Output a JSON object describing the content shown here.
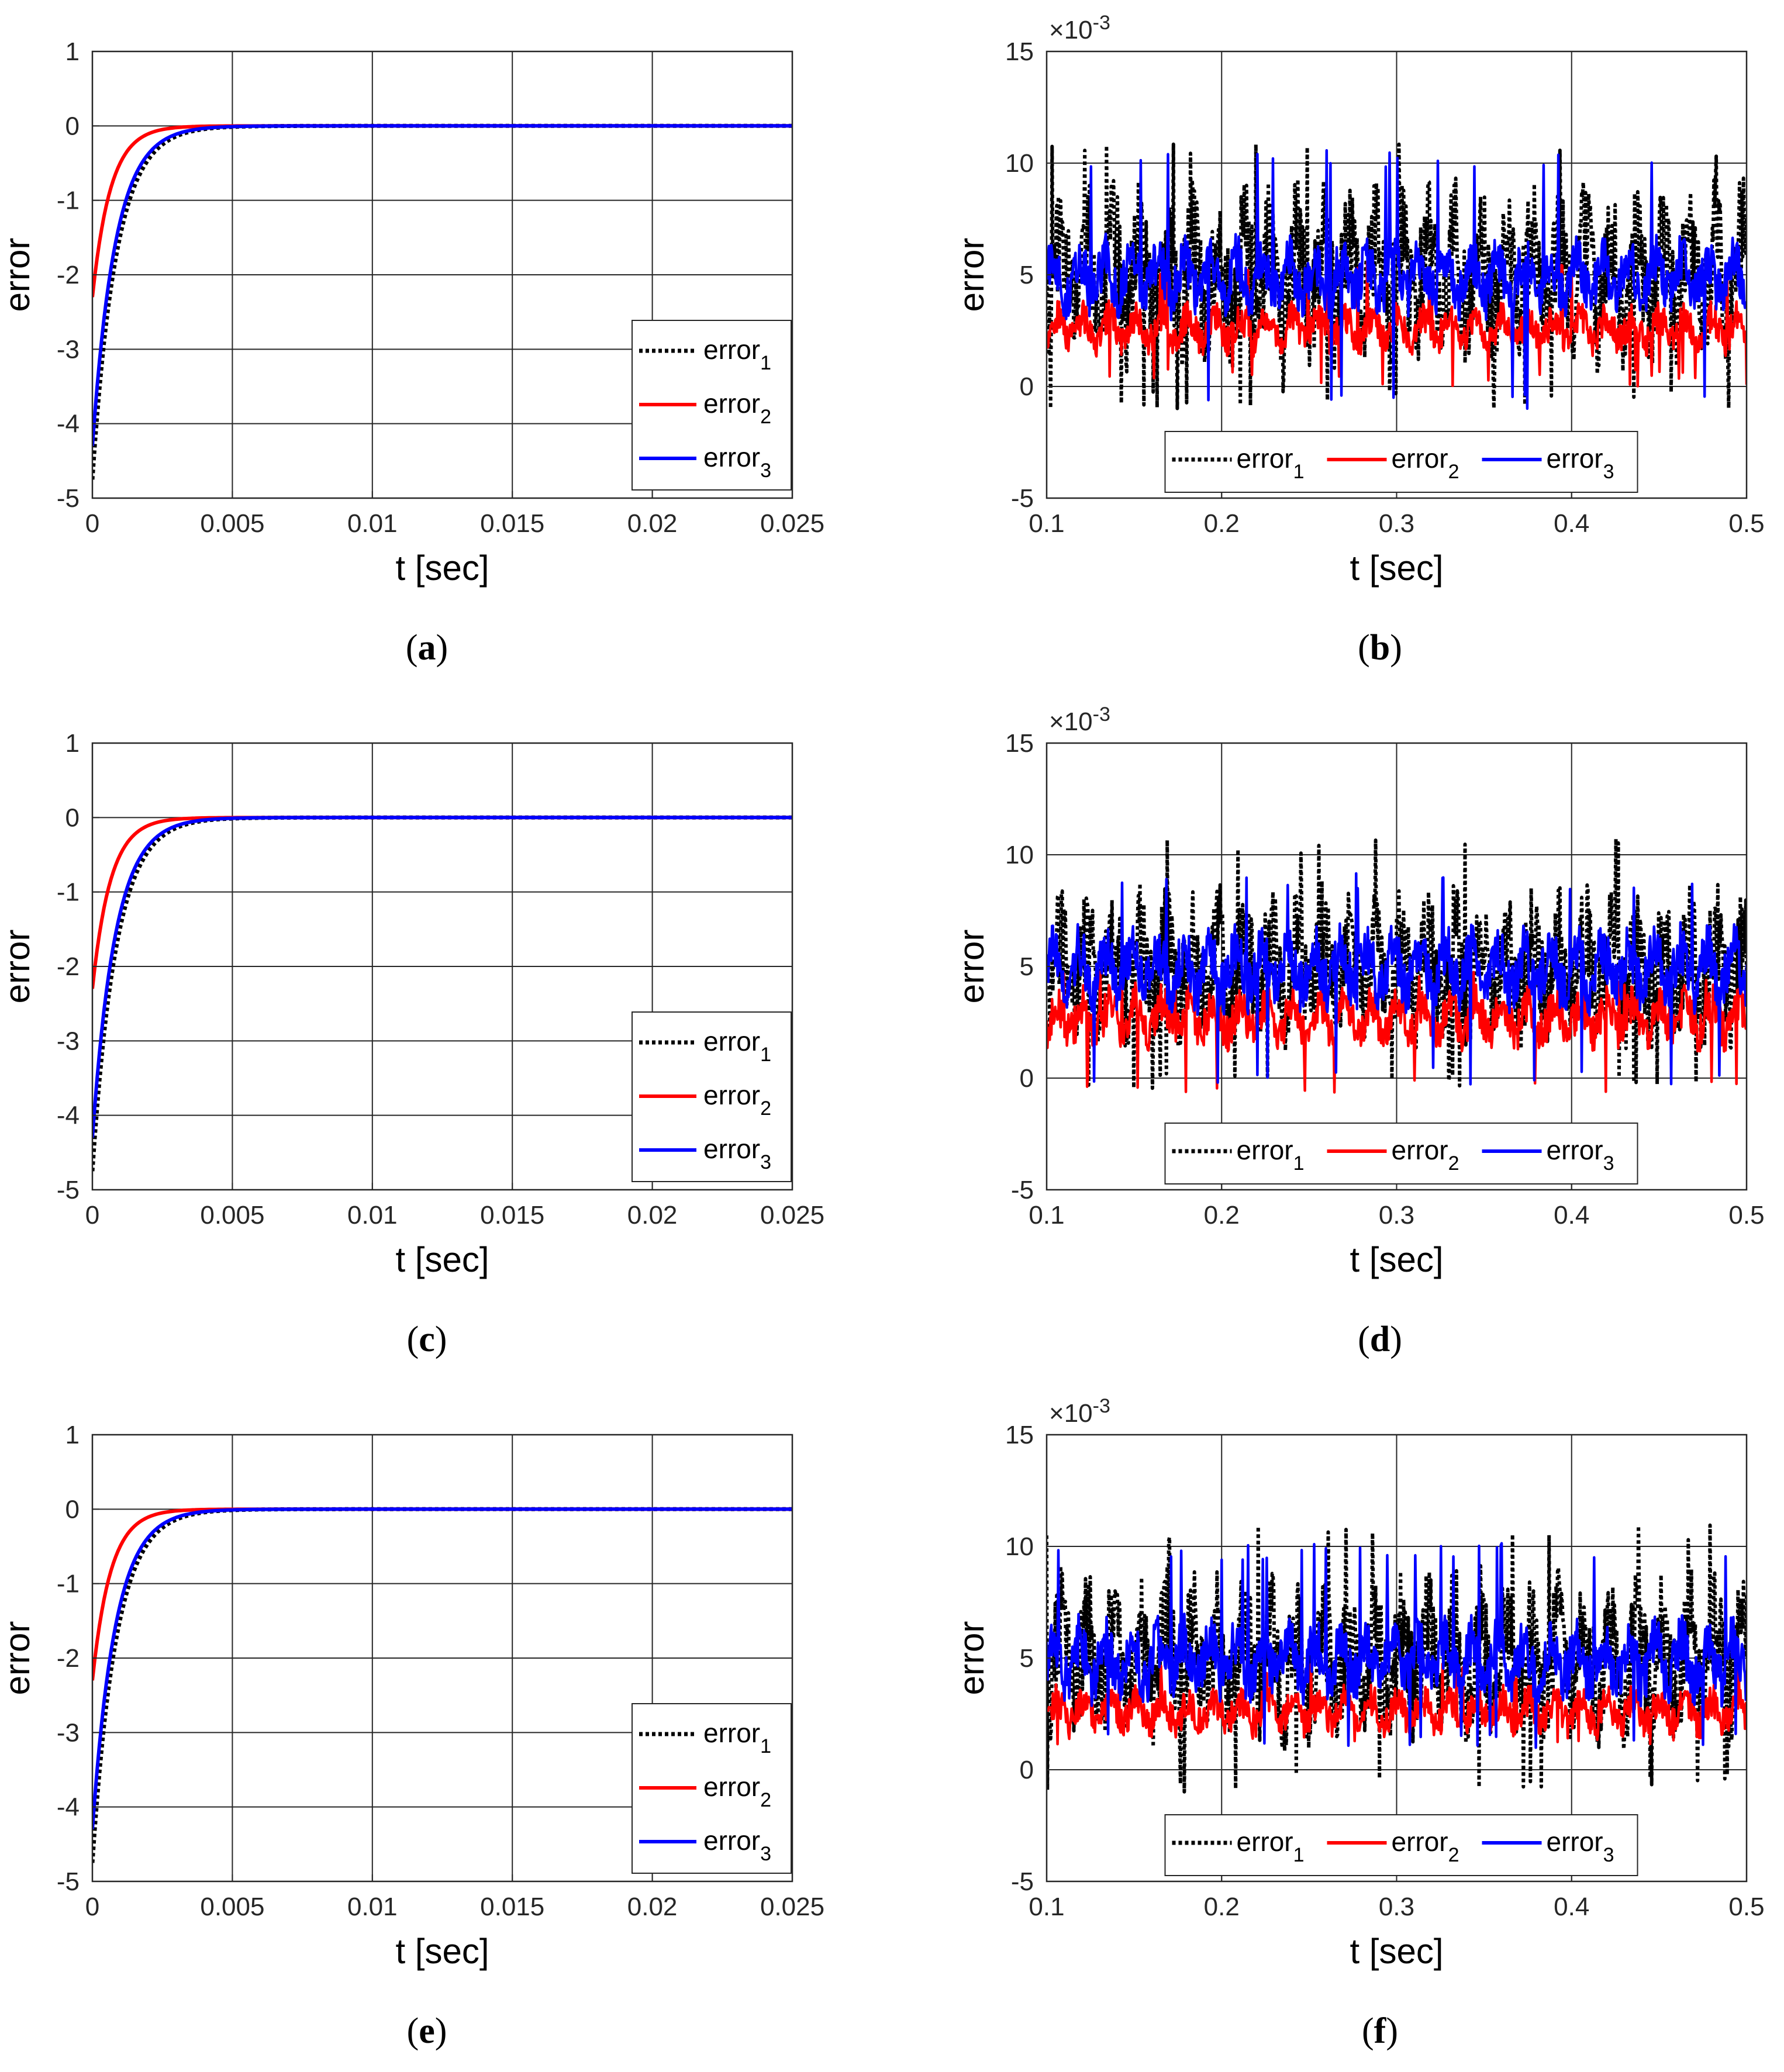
{
  "figure": {
    "panels_order": [
      "a",
      "b",
      "c",
      "d",
      "e",
      "f"
    ]
  },
  "colors": {
    "error1": "#000000",
    "error2": "#ff0000",
    "error3": "#0000ff",
    "grid": "#262626",
    "axis": "#262626"
  },
  "chart_data": [
    {
      "id": "a",
      "caption_letter": "a",
      "type": "line",
      "xlabel": "t [sec]",
      "ylabel": "error",
      "multiplier": "",
      "xlim": [
        0,
        0.025
      ],
      "ylim": [
        -5,
        1
      ],
      "xticks": [
        0,
        0.005,
        0.01,
        0.015,
        0.02,
        0.025
      ],
      "xtick_labels": [
        "0",
        "0.005",
        "0.01",
        "0.015",
        "0.02",
        "0.025"
      ],
      "yticks": [
        -5,
        -4,
        -3,
        -2,
        -1,
        0,
        1
      ],
      "ytick_labels": [
        "-5",
        "-4",
        "-3",
        "-2",
        "-1",
        "0",
        "1"
      ],
      "grid": true,
      "legend_position": "bottom-right",
      "legend_orientation": "vertical",
      "series": [
        {
          "key": "error1",
          "label": "error",
          "sub": "1",
          "style": "dotted",
          "initial": -4.75,
          "time_constant": 0.00085
        },
        {
          "key": "error2",
          "label": "error",
          "sub": "2",
          "style": "solid",
          "initial": -2.3,
          "time_constant": 0.00065
        },
        {
          "key": "error3",
          "label": "error",
          "sub": "3",
          "style": "solid",
          "initial": -4.3,
          "time_constant": 0.00082
        }
      ]
    },
    {
      "id": "b",
      "caption_letter": "b",
      "type": "line",
      "xlabel": "t [sec]",
      "ylabel": "error",
      "multiplier": "×10",
      "multiplier_exp": "-3",
      "xlim": [
        0.1,
        0.5
      ],
      "ylim": [
        -5,
        15
      ],
      "xticks": [
        0.1,
        0.2,
        0.3,
        0.4,
        0.5
      ],
      "xtick_labels": [
        "0.1",
        "0.2",
        "0.3",
        "0.4",
        "0.5"
      ],
      "yticks": [
        -5,
        0,
        5,
        10,
        15
      ],
      "ytick_labels": [
        "-5",
        "0",
        "5",
        "10",
        "15"
      ],
      "grid": true,
      "legend_position": "bottom-center",
      "legend_orientation": "horizontal",
      "series": [
        {
          "key": "error1",
          "label": "error",
          "sub": "1",
          "style": "dotted",
          "mean": 5.0,
          "amplitude": 3.2,
          "min": -1.0,
          "max": 11.1
        },
        {
          "key": "error2",
          "label": "error",
          "sub": "2",
          "style": "solid",
          "mean": 2.6,
          "amplitude": 0.9,
          "min": 0.0,
          "max": 5.8
        },
        {
          "key": "error3",
          "label": "error",
          "sub": "3",
          "style": "solid",
          "mean": 4.9,
          "amplitude": 1.4,
          "min": -1.0,
          "max": 10.6
        }
      ]
    },
    {
      "id": "c",
      "caption_letter": "c",
      "type": "line",
      "xlabel": "t [sec]",
      "ylabel": "error",
      "multiplier": "",
      "xlim": [
        0,
        0.025
      ],
      "ylim": [
        -5,
        1
      ],
      "xticks": [
        0,
        0.005,
        0.01,
        0.015,
        0.02,
        0.025
      ],
      "xtick_labels": [
        "0",
        "0.005",
        "0.01",
        "0.015",
        "0.02",
        "0.025"
      ],
      "yticks": [
        -5,
        -4,
        -3,
        -2,
        -1,
        0,
        1
      ],
      "ytick_labels": [
        "-5",
        "-4",
        "-3",
        "-2",
        "-1",
        "0",
        "1"
      ],
      "grid": true,
      "legend_position": "bottom-right",
      "legend_orientation": "vertical",
      "series": [
        {
          "key": "error1",
          "label": "error",
          "sub": "1",
          "style": "dotted",
          "initial": -4.75,
          "time_constant": 0.00085
        },
        {
          "key": "error2",
          "label": "error",
          "sub": "2",
          "style": "solid",
          "initial": -2.3,
          "time_constant": 0.00065
        },
        {
          "key": "error3",
          "label": "error",
          "sub": "3",
          "style": "solid",
          "initial": -4.3,
          "time_constant": 0.00082
        }
      ]
    },
    {
      "id": "d",
      "caption_letter": "d",
      "type": "line",
      "xlabel": "t [sec]",
      "ylabel": "error",
      "multiplier": "×10",
      "multiplier_exp": "-3",
      "xlim": [
        0.1,
        0.5
      ],
      "ylim": [
        -5,
        15
      ],
      "xticks": [
        0.1,
        0.2,
        0.3,
        0.4,
        0.5
      ],
      "xtick_labels": [
        "0.1",
        "0.2",
        "0.3",
        "0.4",
        "0.5"
      ],
      "yticks": [
        -5,
        0,
        5,
        10,
        15
      ],
      "ytick_labels": [
        "-5",
        "0",
        "5",
        "10",
        "15"
      ],
      "grid": true,
      "legend_position": "bottom-center",
      "legend_orientation": "horizontal",
      "series": [
        {
          "key": "error1",
          "label": "error",
          "sub": "1",
          "style": "dotted",
          "mean": 5.0,
          "amplitude": 2.8,
          "min": -0.5,
          "max": 10.8
        },
        {
          "key": "error2",
          "label": "error",
          "sub": "2",
          "style": "solid",
          "mean": 2.7,
          "amplitude": 1.1,
          "min": -0.7,
          "max": 4.9
        },
        {
          "key": "error3",
          "label": "error",
          "sub": "3",
          "style": "solid",
          "mean": 4.9,
          "amplitude": 1.5,
          "min": -0.3,
          "max": 9.2
        }
      ]
    },
    {
      "id": "e",
      "caption_letter": "e",
      "type": "line",
      "xlabel": "t [sec]",
      "ylabel": "error",
      "multiplier": "",
      "xlim": [
        0,
        0.025
      ],
      "ylim": [
        -5,
        1
      ],
      "xticks": [
        0,
        0.005,
        0.01,
        0.015,
        0.02,
        0.025
      ],
      "xtick_labels": [
        "0",
        "0.005",
        "0.01",
        "0.015",
        "0.02",
        "0.025"
      ],
      "yticks": [
        -5,
        -4,
        -3,
        -2,
        -1,
        0,
        1
      ],
      "ytick_labels": [
        "-5",
        "-4",
        "-3",
        "-2",
        "-1",
        "0",
        "1"
      ],
      "grid": true,
      "legend_position": "bottom-right",
      "legend_orientation": "vertical",
      "series": [
        {
          "key": "error1",
          "label": "error",
          "sub": "1",
          "style": "dotted",
          "initial": -4.75,
          "time_constant": 0.00085
        },
        {
          "key": "error2",
          "label": "error",
          "sub": "2",
          "style": "solid",
          "initial": -2.3,
          "time_constant": 0.00065
        },
        {
          "key": "error3",
          "label": "error",
          "sub": "3",
          "style": "solid",
          "initial": -4.3,
          "time_constant": 0.00082
        }
      ]
    },
    {
      "id": "f",
      "caption_letter": "f",
      "type": "line",
      "xlabel": "t [sec]",
      "ylabel": "error",
      "multiplier": "×10",
      "multiplier_exp": "-3",
      "xlim": [
        0.1,
        0.5
      ],
      "ylim": [
        -5,
        15
      ],
      "xticks": [
        0.1,
        0.2,
        0.3,
        0.4,
        0.5
      ],
      "xtick_labels": [
        "0.1",
        "0.2",
        "0.3",
        "0.4",
        "0.5"
      ],
      "yticks": [
        -5,
        0,
        5,
        10,
        15
      ],
      "ytick_labels": [
        "-5",
        "0",
        "5",
        "10",
        "15"
      ],
      "grid": true,
      "legend_position": "bottom-center",
      "legend_orientation": "horizontal",
      "series": [
        {
          "key": "error1",
          "label": "error",
          "sub": "1",
          "style": "dotted",
          "mean": 5.0,
          "amplitude": 3.0,
          "min": -1.0,
          "max": 11.0
        },
        {
          "key": "error2",
          "label": "error",
          "sub": "2",
          "style": "solid",
          "mean": 2.6,
          "amplitude": 0.9,
          "min": 1.0,
          "max": 4.8
        },
        {
          "key": "error3",
          "label": "error",
          "sub": "3",
          "style": "solid",
          "mean": 4.9,
          "amplitude": 1.5,
          "min": 0.9,
          "max": 10.2
        }
      ]
    }
  ]
}
